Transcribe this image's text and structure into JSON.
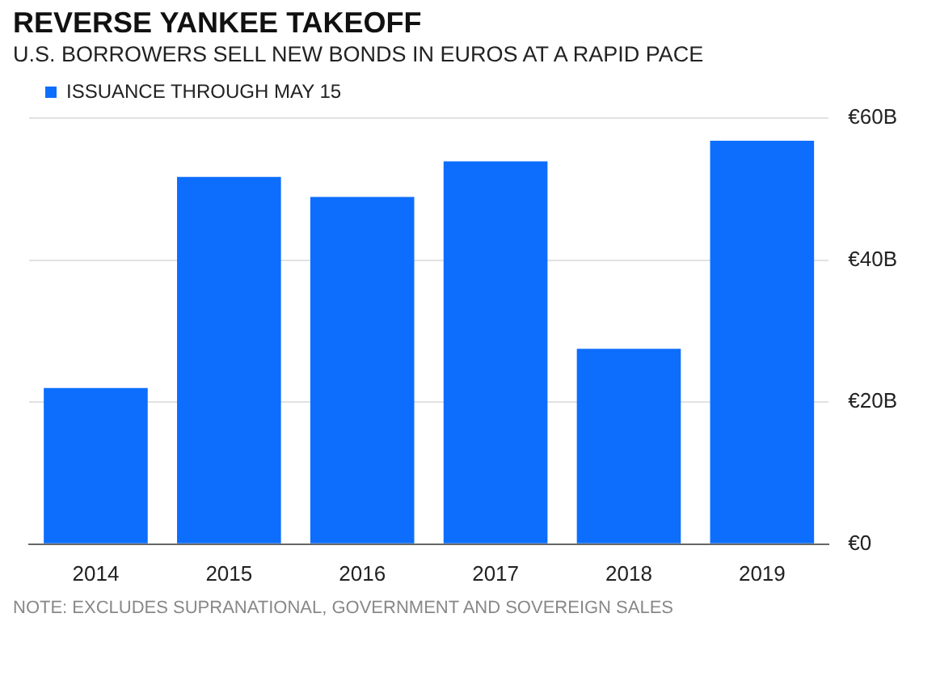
{
  "chart_data": {
    "type": "bar",
    "title": "REVERSE YANKEE TAKEOFF",
    "subtitle": "U.S. BORROWERS SELL NEW BONDS IN EUROS AT A RAPID PACE",
    "categories": [
      "2014",
      "2015",
      "2016",
      "2017",
      "2018",
      "2019"
    ],
    "series": [
      {
        "name": "ISSUANCE THROUGH MAY 15",
        "color": "#0d6efd",
        "values": [
          22,
          51.7,
          48.9,
          53.9,
          27.5,
          56.8
        ]
      }
    ],
    "ylim": [
      0,
      60
    ],
    "yticks": [
      {
        "value": 0,
        "label": "€0"
      },
      {
        "value": 20,
        "label": "€20B"
      },
      {
        "value": 40,
        "label": "€40B"
      },
      {
        "value": 60,
        "label": "€60B"
      }
    ],
    "grid": "y",
    "legend": "top left",
    "annotations": [
      "NOTE: EXCLUDES SUPRANATIONAL, GOVERNMENT AND SOVEREIGN SALES"
    ]
  }
}
